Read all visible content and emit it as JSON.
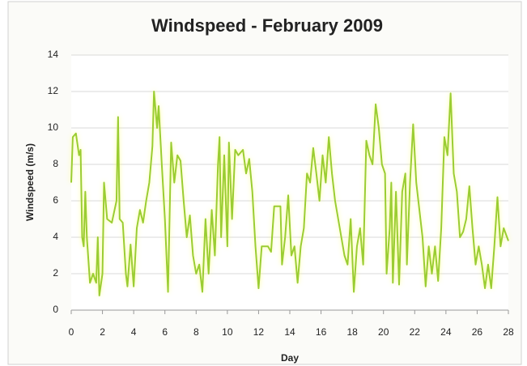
{
  "chart_data": {
    "type": "line",
    "title": "Windspeed - February 2009",
    "xlabel": "Day",
    "ylabel": "Windspeed (m/s)",
    "x": [
      0,
      0.1,
      0.3,
      0.5,
      0.6,
      0.7,
      0.8,
      0.9,
      1.0,
      1.2,
      1.4,
      1.6,
      1.7,
      1.8,
      2.0,
      2.1,
      2.3,
      2.6,
      2.9,
      3.0,
      3.1,
      3.3,
      3.5,
      3.6,
      3.8,
      4.0,
      4.2,
      4.4,
      4.6,
      4.8,
      5.0,
      5.2,
      5.3,
      5.5,
      5.6,
      5.8,
      6.0,
      6.2,
      6.4,
      6.6,
      6.8,
      7.0,
      7.2,
      7.4,
      7.6,
      7.8,
      8.0,
      8.2,
      8.4,
      8.6,
      8.8,
      9.0,
      9.2,
      9.4,
      9.5,
      9.6,
      9.8,
      10.0,
      10.1,
      10.3,
      10.5,
      10.7,
      11.0,
      11.2,
      11.4,
      11.6,
      11.8,
      12.0,
      12.2,
      12.6,
      12.8,
      13.0,
      13.4,
      13.5,
      13.7,
      13.9,
      14.1,
      14.3,
      14.5,
      14.7,
      14.9,
      15.1,
      15.3,
      15.5,
      15.7,
      15.9,
      16.1,
      16.3,
      16.5,
      16.7,
      16.9,
      17.1,
      17.3,
      17.5,
      17.7,
      17.9,
      18.1,
      18.3,
      18.5,
      18.7,
      18.9,
      19.1,
      19.3,
      19.5,
      19.7,
      19.9,
      20.1,
      20.2,
      20.4,
      20.5,
      20.6,
      20.8,
      21.0,
      21.2,
      21.4,
      21.5,
      21.7,
      21.9,
      22.1,
      22.3,
      22.5,
      22.7,
      22.9,
      23.1,
      23.3,
      23.5,
      23.7,
      23.9,
      24.1,
      24.3,
      24.5,
      24.7,
      24.9,
      25.1,
      25.3,
      25.5,
      25.7,
      25.9,
      26.1,
      26.3,
      26.5,
      26.7,
      26.9,
      27.1,
      27.3,
      27.5,
      27.7,
      28.0
    ],
    "values": [
      7,
      9.5,
      9.7,
      8.5,
      8.8,
      4,
      3.5,
      6.5,
      4,
      1.5,
      2,
      1.5,
      4,
      0.8,
      2,
      7,
      5,
      4.8,
      6,
      10.6,
      5,
      4.8,
      2,
      1.3,
      3.6,
      1.3,
      4.5,
      5.5,
      4.8,
      6,
      7,
      9,
      12,
      10,
      11.2,
      8,
      5,
      1,
      9.2,
      7,
      8.5,
      8.2,
      6,
      4,
      5.2,
      3,
      2,
      2.5,
      1,
      5,
      2,
      5.5,
      3,
      8,
      9.5,
      4,
      8.5,
      3.5,
      9.2,
      5,
      8.8,
      8.5,
      8.8,
      7.5,
      8.3,
      6.5,
      3.5,
      1.2,
      3.5,
      3.5,
      3.2,
      5.7,
      5.7,
      2.5,
      4,
      6.3,
      3,
      3.5,
      1.5,
      3.5,
      4.5,
      7.5,
      7,
      8.9,
      7.5,
      6,
      8.5,
      7,
      9.5,
      7.5,
      6,
      5,
      4,
      3,
      2.5,
      5,
      1,
      3.5,
      4.5,
      2.5,
      9.3,
      8.5,
      8,
      11.3,
      10,
      8,
      7.5,
      2,
      4.5,
      7,
      1.5,
      6.5,
      1.4,
      6.5,
      7.5,
      2.5,
      7,
      10.2,
      7,
      5.5,
      4,
      1.3,
      3.5,
      2,
      3.5,
      1.6,
      4.5,
      9.5,
      8.5,
      11.9,
      7.5,
      6.5,
      4,
      4.3,
      5,
      6.8,
      4.5,
      2.5,
      3.5,
      2.5,
      1.2,
      2.5,
      1.2,
      3.5,
      6.2,
      3.5,
      4.5,
      3.8
    ],
    "color": "#9acd32",
    "xlim": [
      0,
      28
    ],
    "xticks": [
      0,
      2,
      4,
      6,
      8,
      10,
      12,
      14,
      16,
      18,
      20,
      22,
      24,
      26,
      28
    ],
    "ylim": [
      0,
      14
    ],
    "yticks": [
      0,
      2,
      4,
      6,
      8,
      10,
      12,
      14
    ],
    "grid": true
  }
}
